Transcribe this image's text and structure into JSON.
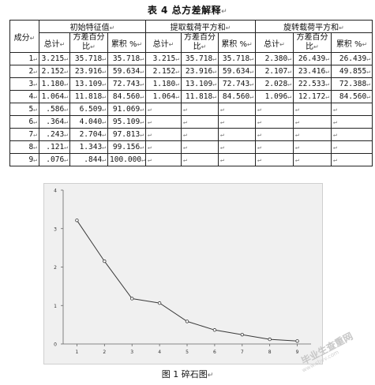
{
  "table": {
    "title": "表 4 总方差解释",
    "col_component": "成分",
    "group_headers": [
      "初始特征值",
      "提取载荷平方和",
      "旋转载荷平方和"
    ],
    "sub_headers": [
      "总计",
      "方差百分比",
      "累积 %"
    ],
    "rows": [
      {
        "n": "1",
        "v": [
          "3.215",
          "35.718",
          "35.718",
          "3.215",
          "35.718",
          "35.718",
          "2.380",
          "26.439",
          "26.439"
        ]
      },
      {
        "n": "2",
        "v": [
          "2.152",
          "23.916",
          "59.634",
          "2.152",
          "23.916",
          "59.634",
          "2.107",
          "23.416",
          "49.855"
        ]
      },
      {
        "n": "3",
        "v": [
          "1.180",
          "13.109",
          "72.743",
          "1.180",
          "13.109",
          "72.743",
          "2.028",
          "22.533",
          "72.388"
        ]
      },
      {
        "n": "4",
        "v": [
          "1.064",
          "11.818",
          "84.560",
          "1.064",
          "11.818",
          "84.560",
          "1.096",
          "12.172",
          "84.560"
        ]
      },
      {
        "n": "5",
        "v": [
          ".586",
          "6.509",
          "91.069"
        ]
      },
      {
        "n": "6",
        "v": [
          ".364",
          "4.040",
          "95.109"
        ]
      },
      {
        "n": "7",
        "v": [
          ".243",
          "2.704",
          "97.813"
        ]
      },
      {
        "n": "8",
        "v": [
          ".121",
          "1.343",
          "99.156"
        ]
      },
      {
        "n": "9",
        "v": [
          ".076",
          ".844",
          "100.000"
        ]
      }
    ]
  },
  "figure": {
    "caption": "图 1 碎石图",
    "watermark": "毕业生查重网",
    "watermark_sub": "www.sbvv.com"
  },
  "chart_data": {
    "type": "line",
    "title": "",
    "xlabel": "",
    "ylabel": "",
    "x": [
      1,
      2,
      3,
      4,
      5,
      6,
      7,
      8,
      9
    ],
    "y": [
      3.215,
      2.152,
      1.18,
      1.064,
      0.586,
      0.364,
      0.243,
      0.121,
      0.076
    ],
    "xlim": [
      0.5,
      9.5
    ],
    "ylim": [
      0,
      4
    ],
    "yticks": [
      0,
      1,
      2,
      3,
      4
    ],
    "xticks": [
      1,
      2,
      3,
      4,
      5,
      6,
      7,
      8,
      9
    ],
    "line_color": "#3a3a3a",
    "background": "#f0f0f0",
    "grid": false
  }
}
